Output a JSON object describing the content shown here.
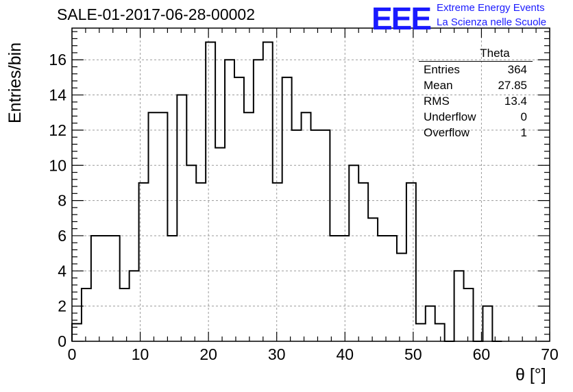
{
  "header": {
    "title": "SALE-01-2017-06-28-00002",
    "logo_text": "EEE",
    "logo_line1": "Extreme Energy Events",
    "logo_line2": "La Scienza nelle Scuole"
  },
  "stats_box": {
    "name": "Theta",
    "rows": [
      {
        "label": "Entries",
        "value": "364"
      },
      {
        "label": "Mean",
        "value": "27.85"
      },
      {
        "label": "RMS",
        "value": "13.4"
      },
      {
        "label": "Underflow",
        "value": "0"
      },
      {
        "label": "Overflow",
        "value": "1"
      }
    ]
  },
  "chart_data": {
    "type": "histogram",
    "xlabel": "θ [°]",
    "ylabel": "Entries/bin",
    "xlim": [
      0,
      70
    ],
    "ylim": [
      0,
      17.8
    ],
    "grid": true,
    "bin_width": 1.4,
    "bin_start": 0,
    "values": [
      1,
      3,
      6,
      6,
      6,
      3,
      4,
      9,
      13,
      13,
      6,
      14,
      10,
      9,
      17,
      11,
      16,
      15,
      13,
      16,
      17,
      9,
      15,
      12,
      13,
      12,
      12,
      6,
      6,
      10,
      9,
      7,
      6,
      6,
      5,
      9,
      1,
      2,
      1,
      0,
      4,
      3,
      0,
      2,
      0
    ],
    "x_ticks": [
      0,
      10,
      20,
      30,
      40,
      50,
      60,
      70
    ],
    "y_ticks": [
      0,
      2,
      4,
      6,
      8,
      10,
      12,
      14,
      16
    ]
  }
}
